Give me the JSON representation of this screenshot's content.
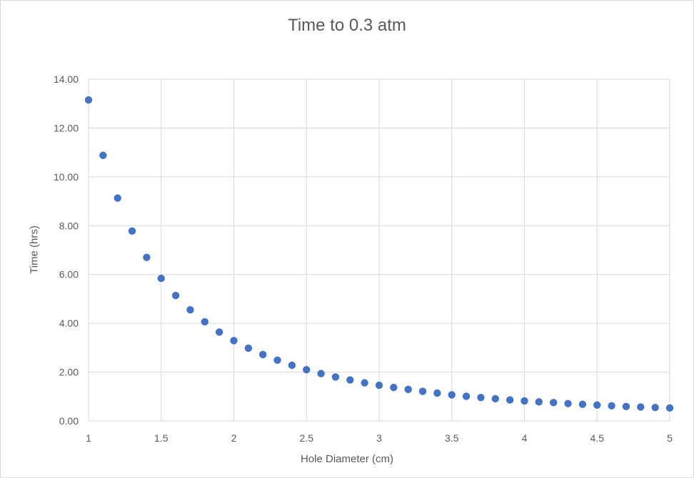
{
  "chart_data": {
    "type": "scatter",
    "title": "Time to 0.3 atm",
    "xlabel": "Hole Diameter (cm)",
    "ylabel": "Time (hrs)",
    "xlim": [
      1,
      5
    ],
    "ylim": [
      0,
      14
    ],
    "x_ticks": [
      "1",
      "1.5",
      "2",
      "2.5",
      "3",
      "3.5",
      "4",
      "4.5",
      "5"
    ],
    "y_ticks": [
      "0.00",
      "2.00",
      "4.00",
      "6.00",
      "8.00",
      "10.00",
      "12.00",
      "14.00"
    ],
    "grid": true,
    "marker_color": "#4472c4",
    "series": [
      {
        "x": [
          1.0,
          1.1,
          1.2,
          1.3,
          1.4,
          1.5,
          1.6,
          1.7,
          1.8,
          1.9,
          2.0,
          2.1,
          2.2,
          2.3,
          2.4,
          2.5,
          2.6,
          2.7,
          2.8,
          2.9,
          3.0,
          3.1,
          3.2,
          3.3,
          3.4,
          3.5,
          3.6,
          3.7,
          3.8,
          3.9,
          4.0,
          4.1,
          4.2,
          4.3,
          4.4,
          4.5,
          4.6,
          4.7,
          4.8,
          4.9,
          5.0
        ],
        "y": [
          13.15,
          10.88,
          9.13,
          7.78,
          6.7,
          5.84,
          5.14,
          4.55,
          4.06,
          3.64,
          3.29,
          2.98,
          2.72,
          2.49,
          2.28,
          2.1,
          1.94,
          1.8,
          1.68,
          1.56,
          1.46,
          1.37,
          1.29,
          1.21,
          1.14,
          1.07,
          1.01,
          0.96,
          0.91,
          0.86,
          0.82,
          0.78,
          0.75,
          0.71,
          0.68,
          0.65,
          0.62,
          0.59,
          0.57,
          0.55,
          0.53
        ]
      }
    ]
  }
}
